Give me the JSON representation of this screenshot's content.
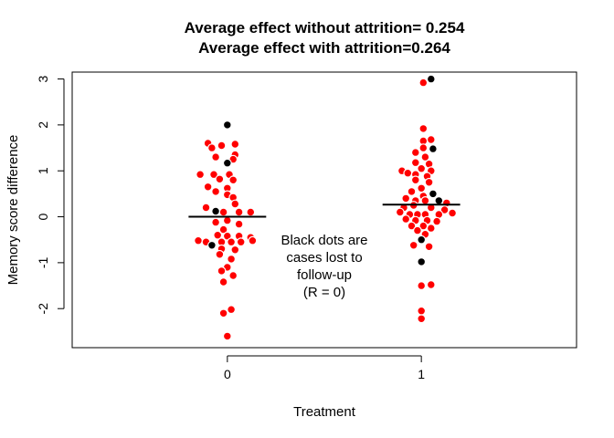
{
  "chart_data": {
    "type": "scatter",
    "title": [
      "Average effect without attrition= 0.254",
      "Average effect with attrition=0.264"
    ],
    "xlabel": "Treatment",
    "ylabel": "Memory score difference",
    "x_categories": [
      "0",
      "1"
    ],
    "xlim": [
      -0.8,
      1.8
    ],
    "ylim": [
      -2.85,
      3.15
    ],
    "yticks": [
      -2,
      -1,
      0,
      1,
      2,
      3
    ],
    "ytick_labels": [
      "-2",
      "-1",
      "0",
      "1",
      "2",
      "3"
    ],
    "annotation": [
      "Black dots are",
      "cases lost to",
      "follow-up",
      "(R = 0)"
    ],
    "colors": {
      "observed": "#ff0000",
      "lost": "#000000",
      "mean_line": "#000000"
    },
    "series": [
      {
        "group": "0",
        "mean": 0.0,
        "points": [
          {
            "x": 0.0,
            "y": 2.0,
            "lost": true
          },
          {
            "x": -0.1,
            "y": 1.6,
            "lost": false
          },
          {
            "x": -0.03,
            "y": 1.55,
            "lost": false
          },
          {
            "x": 0.04,
            "y": 1.58,
            "lost": false
          },
          {
            "x": -0.08,
            "y": 1.5,
            "lost": false
          },
          {
            "x": -0.06,
            "y": 1.3,
            "lost": false
          },
          {
            "x": 0.04,
            "y": 1.35,
            "lost": false
          },
          {
            "x": 0.03,
            "y": 1.25,
            "lost": false
          },
          {
            "x": 0.0,
            "y": 1.17,
            "lost": true
          },
          {
            "x": -0.07,
            "y": 0.92,
            "lost": false
          },
          {
            "x": -0.14,
            "y": 0.92,
            "lost": false
          },
          {
            "x": 0.01,
            "y": 0.92,
            "lost": false
          },
          {
            "x": -0.04,
            "y": 0.82,
            "lost": false
          },
          {
            "x": 0.03,
            "y": 0.8,
            "lost": false
          },
          {
            "x": 0.0,
            "y": 0.62,
            "lost": false
          },
          {
            "x": -0.1,
            "y": 0.65,
            "lost": false
          },
          {
            "x": -0.06,
            "y": 0.55,
            "lost": false
          },
          {
            "x": 0.0,
            "y": 0.48,
            "lost": false
          },
          {
            "x": 0.03,
            "y": 0.42,
            "lost": false
          },
          {
            "x": 0.04,
            "y": 0.28,
            "lost": false
          },
          {
            "x": -0.11,
            "y": 0.2,
            "lost": false
          },
          {
            "x": -0.06,
            "y": 0.12,
            "lost": true
          },
          {
            "x": -0.02,
            "y": 0.1,
            "lost": false
          },
          {
            "x": 0.06,
            "y": 0.1,
            "lost": false
          },
          {
            "x": 0.12,
            "y": 0.1,
            "lost": false
          },
          {
            "x": 0.0,
            "y": -0.08,
            "lost": false
          },
          {
            "x": -0.06,
            "y": -0.12,
            "lost": false
          },
          {
            "x": 0.06,
            "y": -0.16,
            "lost": false
          },
          {
            "x": -0.02,
            "y": -0.28,
            "lost": false
          },
          {
            "x": -0.05,
            "y": -0.4,
            "lost": false
          },
          {
            "x": 0.0,
            "y": -0.42,
            "lost": false
          },
          {
            "x": 0.06,
            "y": -0.42,
            "lost": false
          },
          {
            "x": 0.12,
            "y": -0.45,
            "lost": false
          },
          {
            "x": -0.15,
            "y": -0.52,
            "lost": false
          },
          {
            "x": -0.11,
            "y": -0.55,
            "lost": false
          },
          {
            "x": -0.08,
            "y": -0.62,
            "lost": true
          },
          {
            "x": -0.03,
            "y": -0.55,
            "lost": false
          },
          {
            "x": 0.02,
            "y": -0.55,
            "lost": false
          },
          {
            "x": 0.07,
            "y": -0.55,
            "lost": false
          },
          {
            "x": 0.13,
            "y": -0.52,
            "lost": false
          },
          {
            "x": -0.03,
            "y": -0.7,
            "lost": false
          },
          {
            "x": 0.04,
            "y": -0.72,
            "lost": false
          },
          {
            "x": -0.04,
            "y": -0.82,
            "lost": false
          },
          {
            "x": 0.02,
            "y": -0.92,
            "lost": false
          },
          {
            "x": 0.0,
            "y": -1.1,
            "lost": false
          },
          {
            "x": -0.03,
            "y": -1.18,
            "lost": false
          },
          {
            "x": 0.03,
            "y": -1.28,
            "lost": false
          },
          {
            "x": -0.02,
            "y": -1.42,
            "lost": false
          },
          {
            "x": 0.02,
            "y": -2.02,
            "lost": false
          },
          {
            "x": -0.02,
            "y": -2.1,
            "lost": false
          },
          {
            "x": 0.0,
            "y": -2.6,
            "lost": false
          }
        ]
      },
      {
        "group": "1",
        "mean": 0.264,
        "points": [
          {
            "x": 1.05,
            "y": 3.0,
            "lost": true
          },
          {
            "x": 1.01,
            "y": 2.92,
            "lost": false
          },
          {
            "x": 1.01,
            "y": 1.92,
            "lost": false
          },
          {
            "x": 1.01,
            "y": 1.65,
            "lost": false
          },
          {
            "x": 1.05,
            "y": 1.68,
            "lost": false
          },
          {
            "x": 1.01,
            "y": 1.5,
            "lost": false
          },
          {
            "x": 1.06,
            "y": 1.48,
            "lost": true
          },
          {
            "x": 0.97,
            "y": 1.4,
            "lost": false
          },
          {
            "x": 1.02,
            "y": 1.3,
            "lost": false
          },
          {
            "x": 0.97,
            "y": 1.18,
            "lost": false
          },
          {
            "x": 1.04,
            "y": 1.15,
            "lost": false
          },
          {
            "x": 1.0,
            "y": 1.05,
            "lost": false
          },
          {
            "x": 1.05,
            "y": 1.0,
            "lost": false
          },
          {
            "x": 0.9,
            "y": 1.0,
            "lost": false
          },
          {
            "x": 0.93,
            "y": 0.95,
            "lost": false
          },
          {
            "x": 0.97,
            "y": 0.92,
            "lost": false
          },
          {
            "x": 1.03,
            "y": 0.88,
            "lost": false
          },
          {
            "x": 0.97,
            "y": 0.8,
            "lost": false
          },
          {
            "x": 1.04,
            "y": 0.75,
            "lost": false
          },
          {
            "x": 1.0,
            "y": 0.62,
            "lost": false
          },
          {
            "x": 0.95,
            "y": 0.55,
            "lost": false
          },
          {
            "x": 1.06,
            "y": 0.5,
            "lost": true
          },
          {
            "x": 1.01,
            "y": 0.45,
            "lost": false
          },
          {
            "x": 0.92,
            "y": 0.4,
            "lost": false
          },
          {
            "x": 0.97,
            "y": 0.35,
            "lost": false
          },
          {
            "x": 1.02,
            "y": 0.35,
            "lost": false
          },
          {
            "x": 1.09,
            "y": 0.35,
            "lost": true
          },
          {
            "x": 1.13,
            "y": 0.3,
            "lost": false
          },
          {
            "x": 0.96,
            "y": 0.25,
            "lost": false
          },
          {
            "x": 0.91,
            "y": 0.2,
            "lost": false
          },
          {
            "x": 1.05,
            "y": 0.2,
            "lost": false
          },
          {
            "x": 1.12,
            "y": 0.15,
            "lost": false
          },
          {
            "x": 0.89,
            "y": 0.1,
            "lost": false
          },
          {
            "x": 0.94,
            "y": 0.05,
            "lost": false
          },
          {
            "x": 1.16,
            "y": 0.08,
            "lost": false
          },
          {
            "x": 0.98,
            "y": 0.05,
            "lost": false
          },
          {
            "x": 1.02,
            "y": 0.05,
            "lost": false
          },
          {
            "x": 1.09,
            "y": 0.05,
            "lost": false
          },
          {
            "x": 0.92,
            "y": -0.05,
            "lost": false
          },
          {
            "x": 0.97,
            "y": -0.08,
            "lost": false
          },
          {
            "x": 1.03,
            "y": -0.08,
            "lost": false
          },
          {
            "x": 1.08,
            "y": -0.1,
            "lost": false
          },
          {
            "x": 0.95,
            "y": -0.2,
            "lost": false
          },
          {
            "x": 1.01,
            "y": -0.2,
            "lost": false
          },
          {
            "x": 1.05,
            "y": -0.25,
            "lost": false
          },
          {
            "x": 0.98,
            "y": -0.3,
            "lost": false
          },
          {
            "x": 1.02,
            "y": -0.38,
            "lost": false
          },
          {
            "x": 1.0,
            "y": -0.5,
            "lost": true
          },
          {
            "x": 0.96,
            "y": -0.62,
            "lost": false
          },
          {
            "x": 1.04,
            "y": -0.65,
            "lost": false
          },
          {
            "x": 1.0,
            "y": -0.98,
            "lost": true
          },
          {
            "x": 1.0,
            "y": -1.5,
            "lost": false
          },
          {
            "x": 1.05,
            "y": -1.48,
            "lost": false
          },
          {
            "x": 1.0,
            "y": -2.05,
            "lost": false
          },
          {
            "x": 1.0,
            "y": -2.22,
            "lost": false
          }
        ]
      }
    ]
  }
}
